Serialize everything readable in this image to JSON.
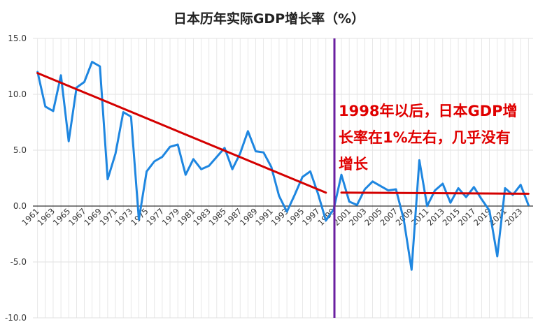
{
  "chart_data": {
    "type": "line",
    "title": "日本历年实际GDP增长率（%）",
    "xlabel": "",
    "ylabel": "",
    "ylim": [
      -10.0,
      15.0
    ],
    "yticks": [
      "-10.0",
      "-5.0",
      "0.0",
      "5.0",
      "10.0",
      "15.0"
    ],
    "xticks": [
      "1961",
      "1963",
      "1965",
      "1967",
      "1969",
      "1971",
      "1973",
      "1975",
      "1977",
      "1979",
      "1981",
      "1983",
      "1985",
      "1987",
      "1989",
      "1991",
      "1993",
      "1995",
      "1997",
      "1999",
      "2001",
      "2003",
      "2005",
      "2007",
      "2009",
      "2011",
      "2013",
      "2015",
      "2017",
      "2019",
      "2021",
      "2023"
    ],
    "grid": true,
    "series": [
      {
        "color": "#1e86e0",
        "x": [
          1961,
          1962,
          1963,
          1964,
          1965,
          1966,
          1967,
          1968,
          1969,
          1970,
          1971,
          1972,
          1973,
          1974,
          1975,
          1976,
          1977,
          1978,
          1979,
          1980,
          1981,
          1982,
          1983,
          1984,
          1985,
          1986,
          1987,
          1988,
          1989,
          1990,
          1991,
          1992,
          1993,
          1994,
          1995,
          1996,
          1997,
          1998,
          1999,
          2000,
          2001,
          2002,
          2003,
          2004,
          2005,
          2006,
          2007,
          2008,
          2009,
          2010,
          2011,
          2012,
          2013,
          2014,
          2015,
          2016,
          2017,
          2018,
          2019,
          2020,
          2021,
          2022,
          2023,
          2024
        ],
        "values": [
          12.0,
          8.9,
          8.5,
          11.7,
          5.8,
          10.6,
          11.1,
          12.9,
          12.5,
          2.4,
          4.7,
          8.4,
          8.0,
          -1.2,
          3.1,
          4.0,
          4.4,
          5.3,
          5.5,
          2.8,
          4.2,
          3.3,
          3.6,
          4.4,
          5.2,
          3.3,
          4.7,
          6.7,
          4.9,
          4.8,
          3.5,
          0.9,
          -0.5,
          1.0,
          2.6,
          3.1,
          1.1,
          -1.3,
          -0.3,
          2.8,
          0.4,
          0.1,
          1.5,
          2.2,
          1.8,
          1.4,
          1.5,
          -1.2,
          -5.7,
          4.1,
          0.0,
          1.4,
          2.0,
          0.3,
          1.6,
          0.8,
          1.7,
          0.6,
          -0.4,
          -4.5,
          1.6,
          1.0,
          1.9,
          0.1
        ]
      }
    ],
    "trendlines": [
      {
        "color": "#d40000",
        "x": [
          1961,
          1998
        ],
        "values": [
          11.9,
          1.2
        ]
      },
      {
        "color": "#d40000",
        "x": [
          2000,
          2024
        ],
        "values": [
          1.2,
          1.1
        ]
      }
    ],
    "divider": {
      "color": "#6a1fa0",
      "x": 1999.1
    },
    "annotation": "1998年以后，日本GDP增\n长率在1%左右，几乎没有\n增长",
    "colors": {
      "grid": "#e2e2e2",
      "axis": "#000000",
      "tick_text": "#333333"
    }
  }
}
